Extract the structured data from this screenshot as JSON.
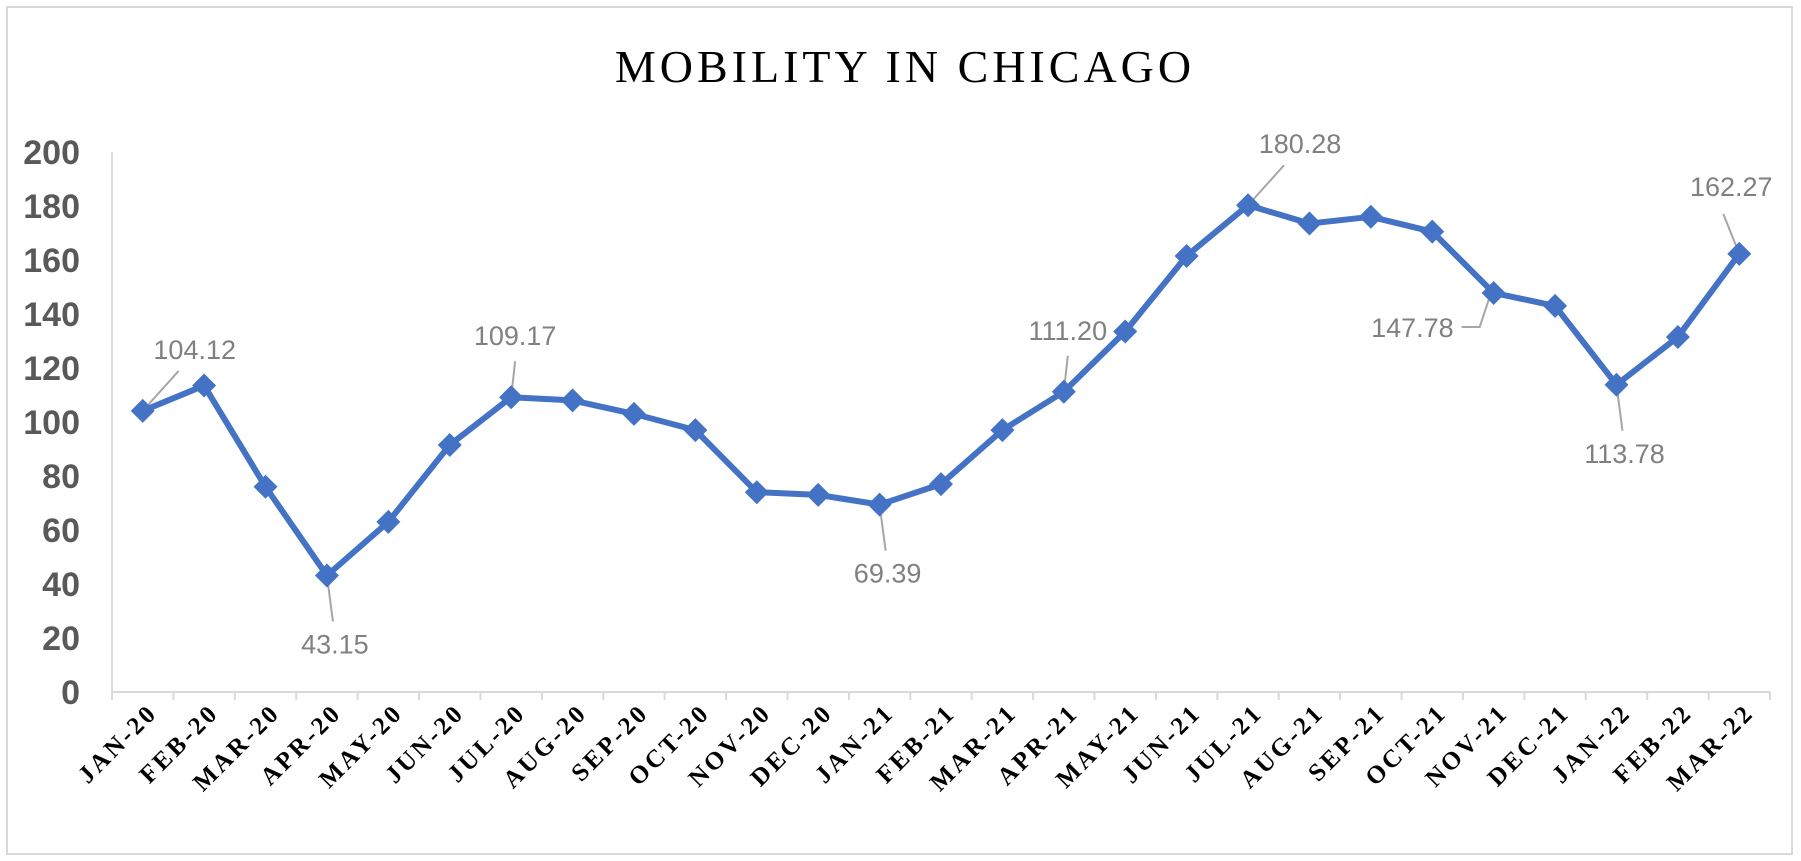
{
  "chart_data": {
    "type": "line",
    "title": "MOBILITY IN CHICAGO",
    "xlabel": "",
    "ylabel": "",
    "ylim": [
      0,
      200
    ],
    "yticks": [
      0,
      20,
      40,
      60,
      80,
      100,
      120,
      140,
      160,
      180,
      200
    ],
    "grid": false,
    "legend": "none",
    "categories": [
      "JAN-20",
      "FEB-20",
      "MAR-20",
      "APR-20",
      "MAY-20",
      "JUN-20",
      "JUL-20",
      "AUG-20",
      "SEP-20",
      "OCT-20",
      "NOV-20",
      "DEC-20",
      "JAN-21",
      "FEB-21",
      "MAR-21",
      "APR-21",
      "MAY-21",
      "JUN-21",
      "JUL-21",
      "AUG-21",
      "SEP-21",
      "OCT-21",
      "NOV-21",
      "DEC-21",
      "JAN-22",
      "FEB-22",
      "MAR-22"
    ],
    "series": [
      {
        "color": "#4472c4",
        "values": [
          104.12,
          113.5,
          76,
          43.15,
          63,
          91.5,
          109.17,
          108,
          103,
          97,
          74,
          73,
          69.39,
          77,
          97,
          111.2,
          133.5,
          161.5,
          180.28,
          173.5,
          176,
          170.5,
          147.78,
          143,
          113.78,
          131.5,
          162.27
        ]
      }
    ],
    "data_labels": [
      {
        "index": 0,
        "text": "104.12",
        "position": "above-right"
      },
      {
        "index": 3,
        "text": "43.15",
        "position": "below"
      },
      {
        "index": 6,
        "text": "109.17",
        "position": "above"
      },
      {
        "index": 12,
        "text": "69.39",
        "position": "below"
      },
      {
        "index": 15,
        "text": "111.20",
        "position": "above"
      },
      {
        "index": 18,
        "text": "180.28",
        "position": "above-right"
      },
      {
        "index": 22,
        "text": "147.78",
        "position": "below-left"
      },
      {
        "index": 24,
        "text": "113.78",
        "position": "below"
      },
      {
        "index": 26,
        "text": "162.27",
        "position": "above-left"
      }
    ]
  }
}
